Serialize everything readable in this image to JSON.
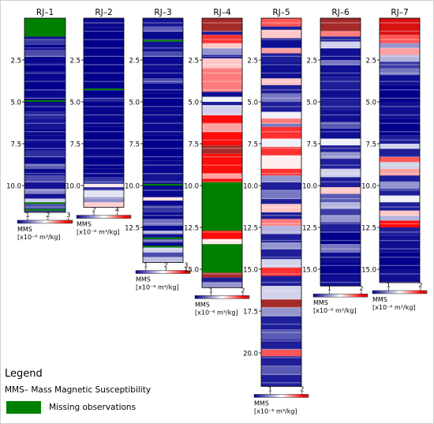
{
  "legend": {
    "title": "Legend",
    "mms_text": "MMS– Mass Magnetic Susceptibility",
    "missing_text": "Missing observations",
    "missing_color": "#008000"
  },
  "colormap": {
    "low": "#00008b",
    "mid": "#ffffff",
    "high": "#ff0000",
    "tail": "#a52a2a"
  },
  "colorbar_labels": [
    "MMS",
    "[x10⁻⁶ m³/kg]"
  ],
  "chart_data": [
    {
      "type": "heatmap",
      "title": "RJ–1",
      "depth_max": 11.6,
      "yticks": [
        2.5,
        5.0,
        7.5,
        10.0
      ],
      "colorbar": {
        "ticks": [
          1,
          2,
          3
        ],
        "range": [
          0.5,
          3.2
        ]
      },
      "missing": [
        [
          0,
          1.1
        ],
        [
          4.9,
          5.0
        ],
        [
          11.0,
          11.1
        ],
        [
          11.4,
          11.5
        ]
      ],
      "bands": [
        [
          0,
          0.55
        ],
        [
          1.1,
          0.6
        ],
        [
          1.3,
          0.8
        ],
        [
          1.6,
          0.5
        ],
        [
          1.9,
          0.9
        ],
        [
          2.3,
          0.55
        ],
        [
          2.7,
          0.5
        ],
        [
          3.2,
          0.55
        ],
        [
          3.7,
          0.5
        ],
        [
          4.3,
          0.55
        ],
        [
          4.8,
          0.5
        ],
        [
          5.1,
          0.55
        ],
        [
          5.6,
          0.7
        ],
        [
          6.0,
          0.6
        ],
        [
          6.6,
          0.55
        ],
        [
          7.0,
          0.55
        ],
        [
          7.4,
          0.55
        ],
        [
          7.9,
          0.75
        ],
        [
          8.3,
          0.55
        ],
        [
          8.7,
          1.0
        ],
        [
          9.0,
          0.55
        ],
        [
          9.4,
          0.9
        ],
        [
          9.8,
          0.6
        ],
        [
          10.2,
          1.2
        ],
        [
          10.5,
          0.6
        ],
        [
          10.8,
          1.6
        ],
        [
          11.1,
          0.9
        ]
      ]
    },
    {
      "type": "heatmap",
      "title": "RJ–2",
      "depth_max": 11.3,
      "yticks": [
        2.5,
        5.0,
        7.5,
        10.0
      ],
      "colorbar": {
        "ticks": [
          2,
          4
        ],
        "range": [
          0.5,
          5.2
        ]
      },
      "missing": [
        [
          4.2,
          4.3
        ]
      ],
      "bands": [
        [
          0,
          0.6
        ],
        [
          0.6,
          0.5
        ],
        [
          4.3,
          0.5
        ],
        [
          4.8,
          0.9
        ],
        [
          5.0,
          0.5
        ],
        [
          5.5,
          0.55
        ],
        [
          6.5,
          0.5
        ],
        [
          7.4,
          0.55
        ],
        [
          8.2,
          0.5
        ],
        [
          9.0,
          0.55
        ],
        [
          9.5,
          1.0
        ],
        [
          9.9,
          3.0
        ],
        [
          10.1,
          0.9
        ],
        [
          10.3,
          2.6
        ],
        [
          10.7,
          1.8
        ],
        [
          11.0,
          3.2
        ]
      ]
    },
    {
      "type": "heatmap",
      "title": "RJ–3",
      "depth_max": 14.6,
      "yticks": [
        2.5,
        5.0,
        7.5,
        10.0,
        12.5,
        15.0
      ],
      "colorbar": {
        "ticks": [
          1,
          2,
          3
        ],
        "range": [
          0.5,
          3.2
        ]
      },
      "missing": [
        [
          1.3,
          1.4
        ],
        [
          9.9,
          10.0
        ],
        [
          13.1,
          13.2
        ],
        [
          13.6,
          13.7
        ]
      ],
      "bands": [
        [
          0,
          0.6
        ],
        [
          0.5,
          1.0
        ],
        [
          0.8,
          0.55
        ],
        [
          1.4,
          0.6
        ],
        [
          2.0,
          0.9
        ],
        [
          2.3,
          0.55
        ],
        [
          3.0,
          0.55
        ],
        [
          3.6,
          0.9
        ],
        [
          3.9,
          0.55
        ],
        [
          4.5,
          0.5
        ],
        [
          5.5,
          0.55
        ],
        [
          7.0,
          0.5
        ],
        [
          8.5,
          0.55
        ],
        [
          9.3,
          0.6
        ],
        [
          10.0,
          0.55
        ],
        [
          10.7,
          2.0
        ],
        [
          10.9,
          0.55
        ],
        [
          11.2,
          0.8
        ],
        [
          11.6,
          0.55
        ],
        [
          12.0,
          1.1
        ],
        [
          12.4,
          0.55
        ],
        [
          12.7,
          1.4
        ],
        [
          12.9,
          0.6
        ],
        [
          13.2,
          1.0
        ],
        [
          13.4,
          0.55
        ],
        [
          13.7,
          1.6
        ],
        [
          14.0,
          0.9
        ],
        [
          14.3,
          1.5
        ]
      ]
    },
    {
      "type": "heatmap",
      "title": "RJ–4",
      "depth_max": 16.1,
      "yticks": [
        2.5,
        5.0,
        7.5,
        10.0,
        12.5,
        15.0
      ],
      "colorbar": {
        "ticks": [
          1,
          2
        ],
        "range": [
          0.5,
          2.2
        ]
      },
      "missing": [
        [
          9.8,
          12.7
        ],
        [
          13.5,
          15.2
        ]
      ],
      "bands": [
        [
          0,
          2.2
        ],
        [
          0.8,
          0.6
        ],
        [
          1.0,
          1.9
        ],
        [
          1.5,
          1.5
        ],
        [
          1.8,
          1.0
        ],
        [
          2.2,
          0.55
        ],
        [
          2.4,
          1.5
        ],
        [
          3.0,
          1.7
        ],
        [
          4.4,
          0.55
        ],
        [
          4.7,
          1.3
        ],
        [
          5.0,
          0.6
        ],
        [
          5.2,
          1.2
        ],
        [
          5.8,
          2.0
        ],
        [
          6.3,
          1.6
        ],
        [
          6.8,
          2.0
        ],
        [
          7.6,
          2.3
        ],
        [
          8.1,
          2.0
        ],
        [
          9.3,
          1.6
        ],
        [
          9.6,
          2.0
        ],
        [
          12.7,
          2.0
        ],
        [
          13.2,
          1.4
        ],
        [
          15.2,
          2.3
        ],
        [
          15.5,
          0.6
        ],
        [
          15.8,
          1.0
        ]
      ]
    },
    {
      "type": "heatmap",
      "title": "RJ–5",
      "depth_max": 22.0,
      "yticks": [
        2.5,
        5.0,
        7.5,
        10.0,
        12.5,
        15.0,
        17.5,
        20.0
      ],
      "colorbar": {
        "ticks": [
          1,
          2
        ],
        "range": [
          0.5,
          2.2
        ]
      },
      "missing": [],
      "bands": [
        [
          0,
          1.8
        ],
        [
          0.5,
          0.6
        ],
        [
          0.7,
          1.5
        ],
        [
          1.2,
          0.55
        ],
        [
          1.8,
          1.6
        ],
        [
          2.1,
          0.6
        ],
        [
          2.6,
          0.55
        ],
        [
          3.6,
          1.5
        ],
        [
          4.0,
          0.6
        ],
        [
          4.5,
          0.9
        ],
        [
          5.0,
          0.6
        ],
        [
          5.6,
          1.3
        ],
        [
          6.0,
          1.7
        ],
        [
          6.3,
          0.9
        ],
        [
          6.5,
          1.9
        ],
        [
          7.2,
          1.3
        ],
        [
          7.7,
          1.9
        ],
        [
          8.2,
          1.4
        ],
        [
          9.0,
          1.9
        ],
        [
          9.4,
          1.0
        ],
        [
          9.8,
          0.6
        ],
        [
          10.3,
          0.9
        ],
        [
          10.8,
          0.6
        ],
        [
          11.1,
          1.5
        ],
        [
          11.6,
          0.6
        ],
        [
          12.0,
          1.7
        ],
        [
          12.4,
          1.1
        ],
        [
          12.9,
          0.6
        ],
        [
          13.4,
          1.0
        ],
        [
          13.8,
          0.6
        ],
        [
          14.4,
          1.2
        ],
        [
          14.9,
          1.9
        ],
        [
          15.4,
          0.6
        ],
        [
          16.0,
          1.2
        ],
        [
          16.8,
          2.3
        ],
        [
          17.3,
          1.0
        ],
        [
          17.8,
          0.6
        ],
        [
          18.6,
          0.8
        ],
        [
          19.2,
          0.6
        ],
        [
          19.8,
          1.8
        ],
        [
          20.2,
          0.6
        ],
        [
          20.8,
          0.8
        ],
        [
          21.3,
          0.6
        ]
      ]
    },
    {
      "type": "heatmap",
      "title": "RJ–6",
      "depth_max": 16.0,
      "yticks": [
        2.5,
        5.0,
        7.5,
        10.0,
        12.5,
        15.0
      ],
      "colorbar": {
        "ticks": [
          1,
          2
        ],
        "range": [
          0.5,
          2.2
        ]
      },
      "missing": [],
      "bands": [
        [
          0,
          2.2
        ],
        [
          0.8,
          1.7
        ],
        [
          1.1,
          0.6
        ],
        [
          1.4,
          1.2
        ],
        [
          1.8,
          0.55
        ],
        [
          2.5,
          0.9
        ],
        [
          2.8,
          0.55
        ],
        [
          3.5,
          0.6
        ],
        [
          4.2,
          0.55
        ],
        [
          4.9,
          0.6
        ],
        [
          5.5,
          0.55
        ],
        [
          6.2,
          0.8
        ],
        [
          6.6,
          0.55
        ],
        [
          7.2,
          1.3
        ],
        [
          7.6,
          0.6
        ],
        [
          8.0,
          1.0
        ],
        [
          8.4,
          0.6
        ],
        [
          9.0,
          1.2
        ],
        [
          9.5,
          0.6
        ],
        [
          10.1,
          1.5
        ],
        [
          10.5,
          0.8
        ],
        [
          11.0,
          1.1
        ],
        [
          11.4,
          0.7
        ],
        [
          11.8,
          1.0
        ],
        [
          12.2,
          0.6
        ],
        [
          12.8,
          0.5
        ],
        [
          13.5,
          0.9
        ],
        [
          14.0,
          0.55
        ],
        [
          14.6,
          0.5
        ],
        [
          15.4,
          0.55
        ]
      ]
    },
    {
      "type": "heatmap",
      "title": "RJ–7",
      "depth_max": 15.8,
      "yticks": [
        2.5,
        5.0,
        7.5,
        10.0,
        12.5,
        15.0
      ],
      "colorbar": {
        "ticks": [
          1,
          2
        ],
        "range": [
          0.5,
          2.2
        ]
      },
      "missing": [],
      "bands": [
        [
          0,
          2.1
        ],
        [
          1.0,
          1.8
        ],
        [
          1.5,
          1.0
        ],
        [
          1.8,
          1.6
        ],
        [
          2.2,
          1.1
        ],
        [
          2.6,
          0.7
        ],
        [
          3.0,
          0.9
        ],
        [
          3.4,
          0.55
        ],
        [
          4.0,
          0.5
        ],
        [
          5.0,
          0.55
        ],
        [
          6.0,
          0.5
        ],
        [
          7.0,
          0.6
        ],
        [
          7.5,
          1.2
        ],
        [
          7.8,
          0.6
        ],
        [
          8.3,
          1.8
        ],
        [
          8.6,
          1.2
        ],
        [
          9.0,
          1.6
        ],
        [
          9.4,
          0.6
        ],
        [
          9.8,
          1.0
        ],
        [
          10.2,
          0.6
        ],
        [
          10.6,
          1.3
        ],
        [
          11.0,
          0.6
        ],
        [
          11.5,
          1.5
        ],
        [
          11.8,
          1.1
        ],
        [
          12.1,
          2.0
        ],
        [
          12.5,
          0.6
        ],
        [
          13.0,
          0.55
        ],
        [
          14.0,
          0.5
        ],
        [
          15.0,
          0.55
        ]
      ]
    }
  ]
}
